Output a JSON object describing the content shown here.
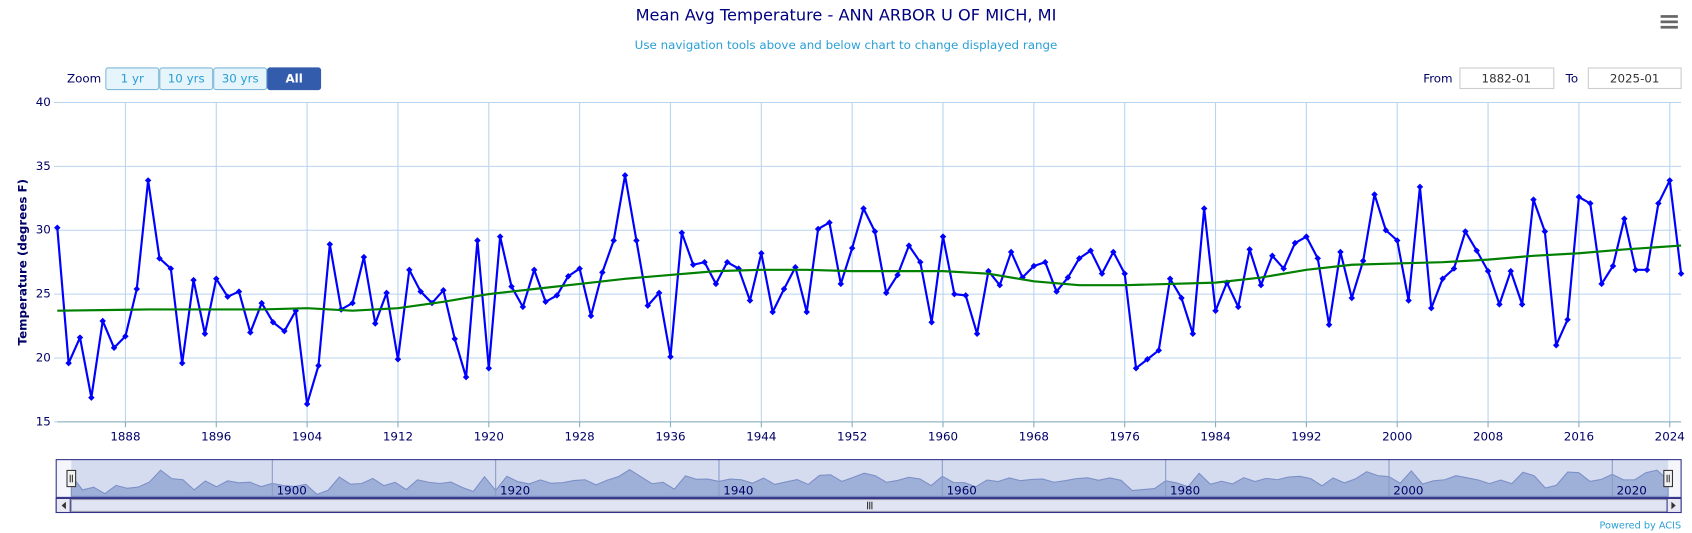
{
  "ui": {
    "zoom_label": "Zoom",
    "zoom_buttons": [
      "1 yr",
      "10 yrs",
      "30 yrs",
      "All"
    ],
    "from_label": "From",
    "from_value": "1882-01",
    "to_label": "To",
    "to_value": "2025-01",
    "credit": "Powered by ACIS"
  },
  "chart_data": {
    "type": "line",
    "title": "Mean Avg Temperature - ANN ARBOR U OF MICH, MI",
    "subtitle": "Use navigation tools above and below chart to change displayed range",
    "y_label": "Temperature (degrees F)",
    "xlim": [
      1882,
      2025
    ],
    "xticks": [
      1888,
      1896,
      1904,
      1912,
      1920,
      1928,
      1936,
      1944,
      1952,
      1960,
      1968,
      1976,
      1984,
      1992,
      2000,
      2008,
      2016,
      2024
    ],
    "ylim": [
      15,
      40
    ],
    "yticks": [
      15,
      20,
      25,
      30,
      35,
      40
    ],
    "grid": true,
    "series": [
      {
        "color": "#0000ff",
        "markers": true,
        "x": [
          1882,
          1883,
          1884,
          1885,
          1886,
          1887,
          1888,
          1889,
          1890,
          1891,
          1892,
          1893,
          1894,
          1895,
          1896,
          1897,
          1898,
          1899,
          1900,
          1901,
          1902,
          1903,
          1904,
          1905,
          1906,
          1907,
          1908,
          1909,
          1910,
          1911,
          1912,
          1913,
          1914,
          1915,
          1916,
          1917,
          1918,
          1919,
          1920,
          1921,
          1922,
          1923,
          1924,
          1925,
          1926,
          1927,
          1928,
          1929,
          1930,
          1931,
          1932,
          1933,
          1934,
          1935,
          1936,
          1937,
          1938,
          1939,
          1940,
          1941,
          1942,
          1943,
          1944,
          1945,
          1946,
          1947,
          1948,
          1949,
          1950,
          1951,
          1952,
          1953,
          1954,
          1955,
          1956,
          1957,
          1958,
          1959,
          1960,
          1961,
          1962,
          1963,
          1964,
          1965,
          1966,
          1967,
          1968,
          1969,
          1970,
          1971,
          1972,
          1973,
          1974,
          1975,
          1976,
          1977,
          1978,
          1979,
          1980,
          1981,
          1982,
          1983,
          1984,
          1985,
          1986,
          1987,
          1988,
          1989,
          1990,
          1991,
          1992,
          1993,
          1994,
          1995,
          1996,
          1997,
          1998,
          1999,
          2000,
          2001,
          2002,
          2003,
          2004,
          2005,
          2006,
          2007,
          2008,
          2009,
          2010,
          2011,
          2012,
          2013,
          2014,
          2015,
          2016,
          2017,
          2018,
          2019,
          2020,
          2021,
          2022,
          2023,
          2024,
          2025
        ],
        "values": [
          30.2,
          19.6,
          21.6,
          16.9,
          22.9,
          20.8,
          21.7,
          25.4,
          33.9,
          27.8,
          27.0,
          19.6,
          26.1,
          21.9,
          26.2,
          24.8,
          25.2,
          22.0,
          24.3,
          22.8,
          22.1,
          23.7,
          16.4,
          19.4,
          28.9,
          23.8,
          24.3,
          27.9,
          22.7,
          25.1,
          19.9,
          26.9,
          25.2,
          24.3,
          25.3,
          21.5,
          18.5,
          29.2,
          19.2,
          29.5,
          25.6,
          24.0,
          26.9,
          24.4,
          24.9,
          26.4,
          27.0,
          23.3,
          26.7,
          29.2,
          34.3,
          29.2,
          24.1,
          25.1,
          20.1,
          29.8,
          27.3,
          27.5,
          25.8,
          27.5,
          27.0,
          24.5,
          28.2,
          23.6,
          25.4,
          27.1,
          23.6,
          30.1,
          30.6,
          25.8,
          28.6,
          31.7,
          29.9,
          25.1,
          26.5,
          28.8,
          27.5,
          22.8,
          29.5,
          25.0,
          24.9,
          21.9,
          26.8,
          25.7,
          28.3,
          26.3,
          27.2,
          27.5,
          25.2,
          26.3,
          27.8,
          28.4,
          26.6,
          28.3,
          26.6,
          19.2,
          19.9,
          20.6,
          26.2,
          24.7,
          21.9,
          31.7,
          23.7,
          25.9,
          24.0,
          28.5,
          25.7,
          28.0,
          27.0,
          29.0,
          29.5,
          27.8,
          22.6,
          28.3,
          24.7,
          27.6,
          32.8,
          30.0,
          29.2,
          24.5,
          33.4,
          23.9,
          26.2,
          27.0,
          29.9,
          28.4,
          26.8,
          24.2,
          26.8,
          24.2,
          32.4,
          29.9,
          21.0,
          23.0,
          32.6,
          32.1,
          25.8,
          27.2,
          30.9,
          26.9,
          26.9,
          32.1,
          33.9,
          26.6
        ]
      },
      {
        "color": "#008000",
        "markers": false,
        "x": [
          1882,
          1890,
          1900,
          1904,
          1908,
          1912,
          1916,
          1920,
          1924,
          1928,
          1932,
          1936,
          1940,
          1944,
          1948,
          1952,
          1956,
          1960,
          1964,
          1968,
          1972,
          1976,
          1980,
          1984,
          1988,
          1992,
          1996,
          2000,
          2004,
          2008,
          2012,
          2016,
          2020,
          2025
        ],
        "values": [
          23.7,
          23.8,
          23.8,
          23.9,
          23.7,
          23.9,
          24.4,
          25.0,
          25.4,
          25.8,
          26.2,
          26.5,
          26.8,
          26.9,
          26.9,
          26.8,
          26.8,
          26.8,
          26.6,
          26.0,
          25.7,
          25.7,
          25.8,
          25.9,
          26.3,
          26.9,
          27.3,
          27.4,
          27.5,
          27.7,
          28.0,
          28.2,
          28.5,
          28.8
        ]
      }
    ],
    "navigator": {
      "xticks": [
        1900,
        1920,
        1940,
        1960,
        1980,
        2000,
        2020
      ]
    }
  }
}
